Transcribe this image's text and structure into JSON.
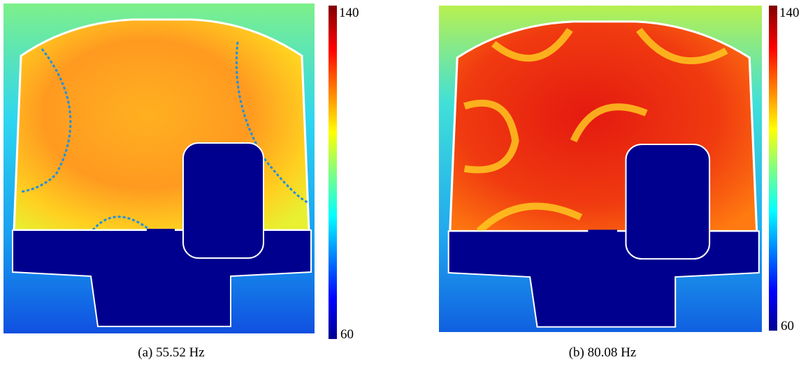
{
  "panels": [
    {
      "caption": "(a) 55.52 Hz",
      "colorbar": {
        "max": 140,
        "min": 60
      }
    },
    {
      "caption": "(b) 80.08 Hz",
      "colorbar": {
        "max": 140,
        "min": 60
      }
    }
  ]
}
